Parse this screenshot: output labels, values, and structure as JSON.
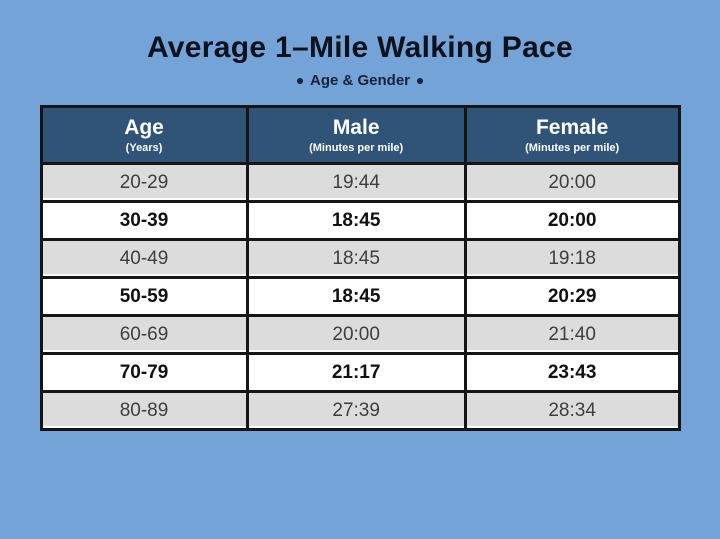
{
  "page": {
    "title": "Average 1–Mile Walking Pace",
    "subtitle": "Age & Gender",
    "colors": {
      "background": "#74a3d7",
      "header_background": "#2f5478",
      "header_text": "#ffffff",
      "row_gray": "#dcdcdc",
      "row_white": "#ffffff",
      "border": "#151515",
      "title_text": "#0c111c",
      "subtitle_text": "#16223c"
    }
  },
  "table": {
    "header": {
      "columns": [
        {
          "label": "Age",
          "sublabel": "(Years)"
        },
        {
          "label": "Male",
          "sublabel": "(Minutes per mile)"
        },
        {
          "label": "Female",
          "sublabel": "(Minutes per mile)"
        }
      ]
    },
    "rows": [
      {
        "age": "20-29",
        "male": "19:44",
        "female": "20:00",
        "emphasis": false
      },
      {
        "age": "30-39",
        "male": "18:45",
        "female": "20:00",
        "emphasis": true
      },
      {
        "age": "40-49",
        "male": "18:45",
        "female": "19:18",
        "emphasis": false
      },
      {
        "age": "50-59",
        "male": "18:45",
        "female": "20:29",
        "emphasis": true
      },
      {
        "age": "60-69",
        "male": "20:00",
        "female": "21:40",
        "emphasis": false
      },
      {
        "age": "70-79",
        "male": "21:17",
        "female": "23:43",
        "emphasis": true
      },
      {
        "age": "80-89",
        "male": "27:39",
        "female": "28:34",
        "emphasis": false
      }
    ]
  },
  "chart_data": {
    "type": "table",
    "title": "Average 1–Mile Walking Pace",
    "subtitle": "Age & Gender",
    "columns": [
      "Age (Years)",
      "Male (Minutes per mile)",
      "Female (Minutes per mile)"
    ],
    "rows": [
      [
        "20-29",
        "19:44",
        "20:00"
      ],
      [
        "30-39",
        "18:45",
        "20:00"
      ],
      [
        "40-49",
        "18:45",
        "19:18"
      ],
      [
        "50-59",
        "18:45",
        "20:29"
      ],
      [
        "60-69",
        "20:00",
        "21:40"
      ],
      [
        "70-79",
        "21:17",
        "23:43"
      ],
      [
        "80-89",
        "27:39",
        "28:34"
      ]
    ]
  }
}
